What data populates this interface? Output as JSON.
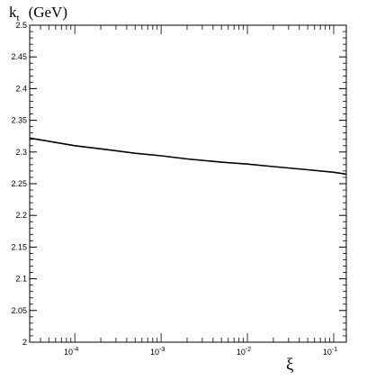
{
  "chart_data": {
    "type": "line",
    "title": "",
    "ylabel": "k",
    "ylabel_subscript": "t",
    "ylabel_unit": "(GeV)",
    "xlabel": "ξ",
    "xscale": "log",
    "xlim": [
      3e-05,
      0.14
    ],
    "ylim": [
      2,
      2.5
    ],
    "grid": false,
    "y_ticks": [
      "2",
      "2.05",
      "2.1",
      "2.15",
      "2.2",
      "2.25",
      "2.3",
      "2.35",
      "2.4",
      "2.45",
      "2.5"
    ],
    "x_ticks": [
      {
        "base": "10",
        "exp": "-4",
        "value": 0.0001
      },
      {
        "base": "10",
        "exp": "-3",
        "value": 0.001
      },
      {
        "base": "10",
        "exp": "-2",
        "value": 0.01
      },
      {
        "base": "10",
        "exp": "-1",
        "value": 0.1
      }
    ],
    "series": [
      {
        "x": [
          3e-05,
          6e-05,
          0.0001,
          0.0002,
          0.0005,
          0.001,
          0.002,
          0.005,
          0.01,
          0.02,
          0.05,
          0.1,
          0.14
        ],
        "y": [
          2.322,
          2.315,
          2.31,
          2.305,
          2.298,
          2.294,
          2.289,
          2.284,
          2.281,
          2.277,
          2.272,
          2.268,
          2.265
        ]
      }
    ]
  }
}
